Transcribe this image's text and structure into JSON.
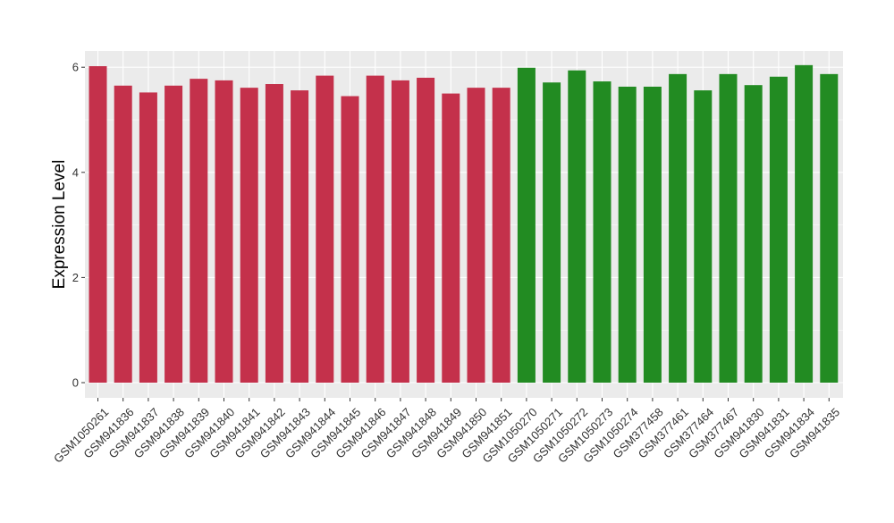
{
  "chart_data": {
    "type": "bar",
    "title": "",
    "xlabel": "",
    "ylabel": "Expression Level",
    "ylim": [
      0,
      6.3
    ],
    "yticks": [
      0,
      2,
      4,
      6
    ],
    "grid": true,
    "legend": "none",
    "colors": {
      "group_1": "#c4314b",
      "group_2": "#228b22",
      "panel": "#ebebeb",
      "grid": "#ffffff"
    },
    "categories": [
      "GSM1050261",
      "GSM941836",
      "GSM941837",
      "GSM941838",
      "GSM941839",
      "GSM941840",
      "GSM941841",
      "GSM941842",
      "GSM941843",
      "GSM941844",
      "GSM941845",
      "GSM941846",
      "GSM941847",
      "GSM941848",
      "GSM941849",
      "GSM941850",
      "GSM941851",
      "GSM1050270",
      "GSM1050271",
      "GSM1050272",
      "GSM1050273",
      "GSM1050274",
      "GSM377458",
      "GSM377461",
      "GSM377464",
      "GSM377467",
      "GSM941830",
      "GSM941831",
      "GSM941834",
      "GSM941835"
    ],
    "values": [
      6.02,
      5.65,
      5.52,
      5.65,
      5.78,
      5.75,
      5.61,
      5.68,
      5.56,
      5.84,
      5.45,
      5.84,
      5.75,
      5.8,
      5.5,
      5.61,
      5.61,
      5.99,
      5.71,
      5.94,
      5.73,
      5.63,
      5.63,
      5.87,
      5.56,
      5.87,
      5.66,
      5.82,
      6.04,
      5.87
    ],
    "group": [
      1,
      1,
      1,
      1,
      1,
      1,
      1,
      1,
      1,
      1,
      1,
      1,
      1,
      1,
      1,
      1,
      1,
      2,
      2,
      2,
      2,
      2,
      2,
      2,
      2,
      2,
      2,
      2,
      2,
      2
    ]
  }
}
